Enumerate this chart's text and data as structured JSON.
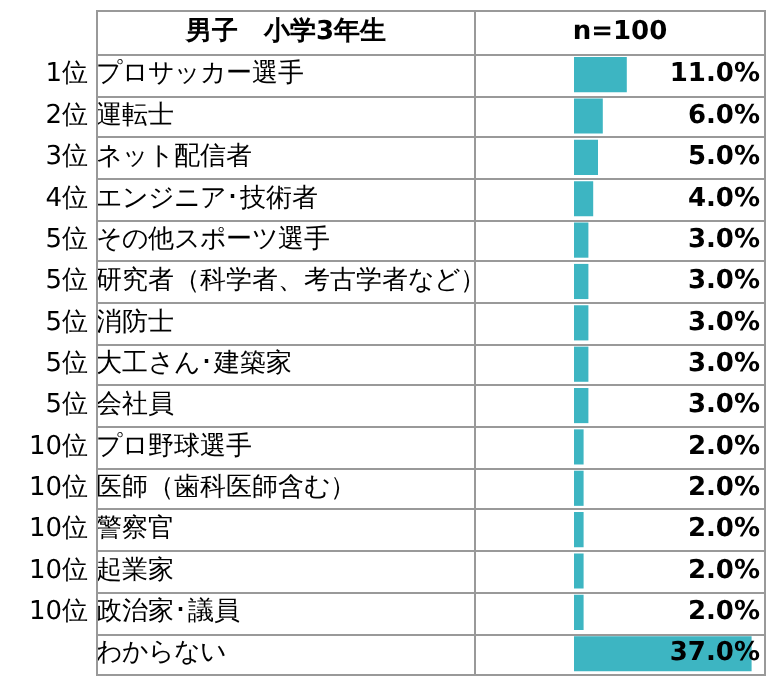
{
  "chart_data": {
    "type": "bar",
    "orientation": "horizontal",
    "title": "男子　小学3年生",
    "categories": [
      "プロサッカー選手",
      "運転士",
      "ネット配信者",
      "エンジニア･技術者",
      "その他スポーツ選手",
      "研究者（科学者、考古学者など）",
      "消防士",
      "大工さん･建築家",
      "会社員",
      "プロ野球選手",
      "医師（歯科医師含む）",
      "警察官",
      "起業家",
      "政治家･議員",
      "わからない"
    ],
    "values": [
      11,
      6,
      5,
      4,
      3,
      3,
      3,
      3,
      3,
      2,
      2,
      2,
      2,
      2,
      37
    ],
    "value_labels": [
      "11.0%",
      "6.0%",
      "5.0%",
      "4.0%",
      "3.0%",
      "3.0%",
      "3.0%",
      "3.0%",
      "3.0%",
      "2.0%",
      "2.0%",
      "2.0%",
      "2.0%",
      "2.0%",
      "37.0%"
    ],
    "color": "#3db5c2",
    "grid": "y",
    "tick_labels": "y",
    "legend": false,
    "annotations": [
      "n=100",
      "1位",
      "2位",
      "3位",
      "4位",
      "5位",
      "5位",
      "5位",
      "5位",
      "5位",
      "10位",
      "10位",
      "10位",
      "10位",
      "10位"
    ]
  }
}
